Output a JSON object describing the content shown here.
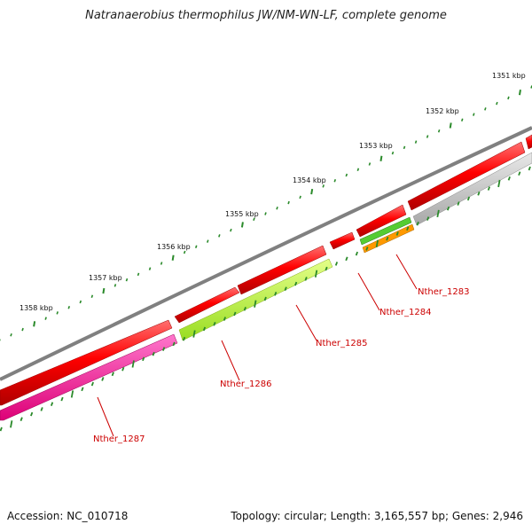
{
  "title": "Natranaerobius thermophilus JW/NM-WN-LF, complete genome",
  "accession": "Accession: NC_010718",
  "summary": "Topology: circular; Length: 3,165,557 bp; Genes: 2,946",
  "ticks": [
    {
      "label": "1351 kbp"
    },
    {
      "label": "1352 kbp"
    },
    {
      "label": "1353 kbp"
    },
    {
      "label": "1354 kbp"
    },
    {
      "label": "1355 kbp"
    },
    {
      "label": "1356 kbp"
    },
    {
      "label": "1357 kbp"
    },
    {
      "label": "1358 kbp"
    }
  ],
  "genes": [
    {
      "label": "Nther_1283"
    },
    {
      "label": "Nther_1284"
    },
    {
      "label": "Nther_1285"
    },
    {
      "label": "Nther_1286"
    },
    {
      "label": "Nther_1287"
    }
  ],
  "colors": {
    "backbone": "#808080",
    "cds": "#ff0000",
    "gene_label": "#cc0000",
    "gc_skew": "#2a8a2a",
    "nther_1283_track": "#c8c8c8",
    "nther_1284_track_a": "#55cc33",
    "nther_1284_track_b": "#ff9900",
    "nther_1285_track": "#bbff44",
    "nther_1287_track": "#ff2299"
  }
}
